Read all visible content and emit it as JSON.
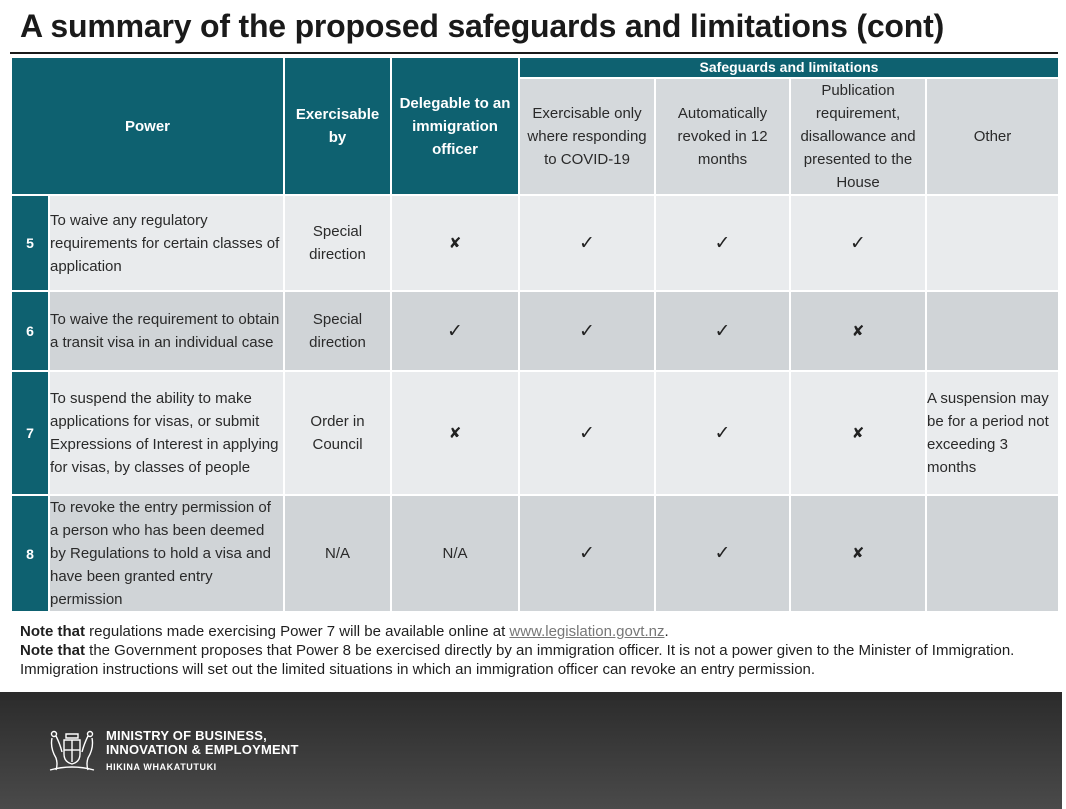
{
  "title": "A summary of the proposed safeguards and limitations (cont)",
  "table": {
    "header": {
      "power": "Power",
      "exercisable_by": "Exercisable by",
      "delegable": "Delegable to an immigration officer",
      "group": "Safeguards and limitations",
      "covid": "Exercisable only where responding to COVID-19",
      "revoked": "Automatically revoked in 12 months",
      "publication": "Publication requirement, disallowance and presented to the House",
      "other": "Other"
    },
    "rows": [
      {
        "num": "5",
        "power": "To waive any regulatory requirements for certain classes of application",
        "exercisable_by": "Special direction",
        "delegable": "✘",
        "covid": "✓",
        "revoked": "✓",
        "publication": "✓",
        "other": ""
      },
      {
        "num": "6",
        "power": "To waive the requirement to obtain a transit visa in an individual case",
        "exercisable_by": "Special direction",
        "delegable": "✓",
        "covid": "✓",
        "revoked": "✓",
        "publication": "✘",
        "other": ""
      },
      {
        "num": "7",
        "power": "To suspend the ability to make applications for visas, or submit Expressions of Interest in applying for visas, by classes of people",
        "exercisable_by": "Order in Council",
        "delegable": "✘",
        "covid": "✓",
        "revoked": "✓",
        "publication": "✘",
        "other": "A suspension may be for a period not exceeding 3 months"
      },
      {
        "num": "8",
        "power": "To revoke the entry permission of a person who has been deemed by Regulations to hold a visa and have been granted entry permission",
        "exercisable_by": "N/A",
        "delegable": "N/A",
        "covid": "✓",
        "revoked": "✓",
        "publication": "✘",
        "other": ""
      }
    ]
  },
  "notes": {
    "n1_lead": "Note that",
    "n1_text": " regulations made exercising Power 7 will be available online at ",
    "n1_link": "www.legislation.govt.nz",
    "n1_end": ".",
    "n2_lead": "Note that",
    "n2_text": " the Government proposes that Power 8 be exercised directly by an immigration officer. It is not a power given to the Minister of Immigration. Immigration instructions will set out the limited situations in which an immigration officer can revoke an entry permission."
  },
  "footer": {
    "line1": "MINISTRY OF BUSINESS,",
    "line2": "INNOVATION & EMPLOYMENT",
    "line3": "HIKINA WHAKATUTUKI",
    "logo_icon": "coat-of-arms-icon"
  },
  "colors": {
    "header_teal": "#0e6170",
    "light_header": "#d5d9dc",
    "row_light": "#e9ebed",
    "row_dark": "#d0d4d7"
  }
}
